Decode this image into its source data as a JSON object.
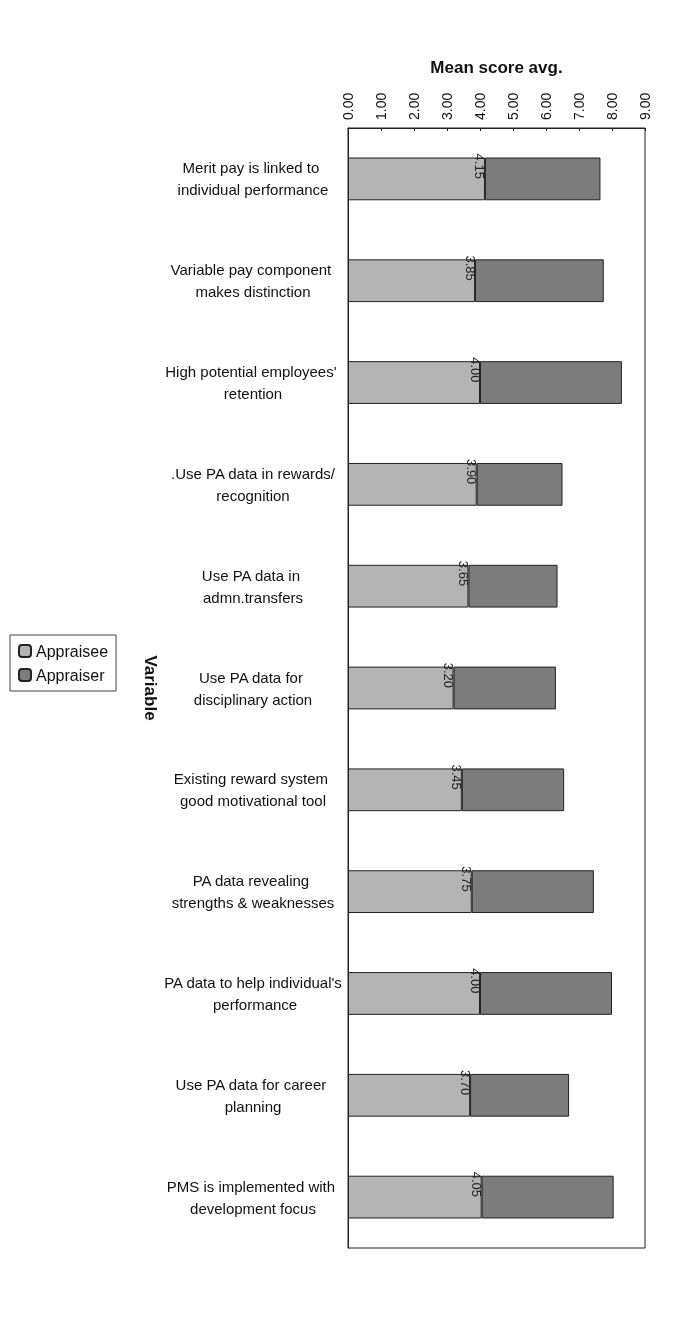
{
  "chart_data": {
    "type": "bar",
    "orientation": "horizontal",
    "stacked": true,
    "xlabel": "Mean score avg.",
    "ylabel": "Variable",
    "categories": [
      "Merit pay is linked to individual performance",
      "Variable pay component makes distinction",
      "High potential employees' retention",
      ".Use PA data in rewards/recognition",
      "Use PA data in admn.transfers",
      "Use PA data for disciplinary action",
      "Existing reward system good motivational tool",
      "PA data revealing strengths & weaknesses",
      "PA data to help individual's performance",
      "Use PA data for career planning",
      "PMS is implemented with development focus"
    ],
    "series": [
      {
        "name": "Appraisee",
        "color": "#b4b4b4",
        "values": [
          4.15,
          3.85,
          4.0,
          3.9,
          3.65,
          3.2,
          3.45,
          3.75,
          4.0,
          3.7,
          4.05
        ],
        "value_labels": [
          "4.15",
          "3.85",
          "4.00",
          "3.90",
          "3.65",
          "3.20",
          "3.45",
          "3.75",
          "4.00",
          "3.70",
          "4.05"
        ]
      },
      {
        "name": "Appraiser",
        "color": "#7c7c7c",
        "values": [
          3.5,
          3.9,
          4.3,
          2.6,
          2.7,
          3.1,
          3.1,
          3.7,
          4.0,
          3.0,
          4.0
        ]
      }
    ],
    "xlim": [
      0,
      9
    ],
    "xticks": [
      {
        "value": 0,
        "label": "0.00"
      },
      {
        "value": 1,
        "label": "1.00"
      },
      {
        "value": 2,
        "label": "2.00"
      },
      {
        "value": 3,
        "label": "3.00"
      },
      {
        "value": 4,
        "label": "4.00"
      },
      {
        "value": 5,
        "label": "5.00"
      },
      {
        "value": 6,
        "label": "6.00"
      },
      {
        "value": 7,
        "label": "7.00"
      },
      {
        "value": 8,
        "label": "8.00"
      },
      {
        "value": 9,
        "label": "9.00"
      }
    ],
    "grid": false,
    "legend": "left"
  }
}
